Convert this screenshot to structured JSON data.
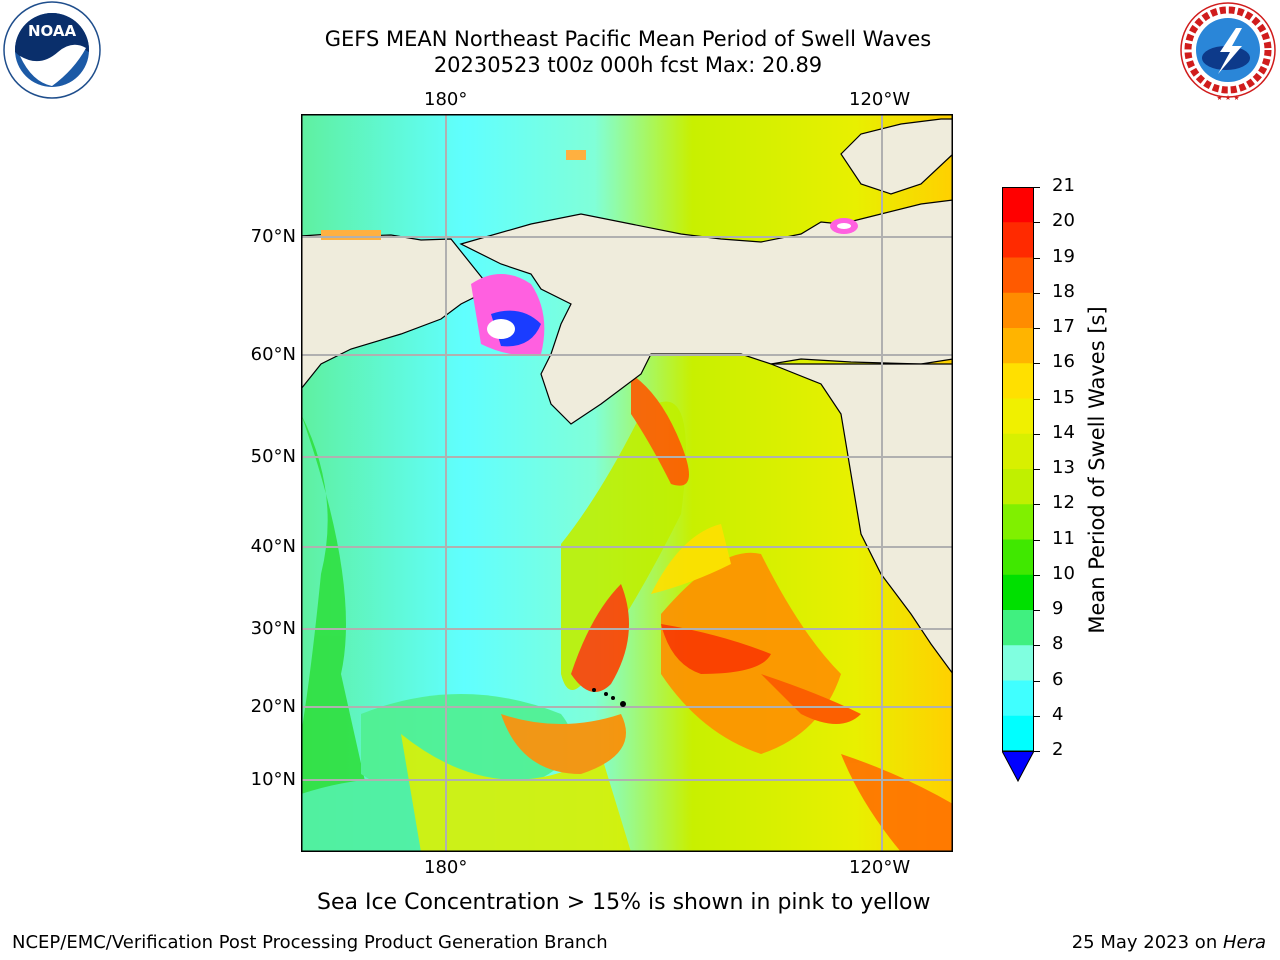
{
  "title": {
    "line1": "GEFS MEAN Northeast Pacific Mean Period of Swell Waves",
    "line2": "20230523 t00z 000h fcst   Max: 20.89"
  },
  "logos": {
    "left": {
      "name": "noaa-logo",
      "text": "NOAA"
    },
    "right": {
      "name": "nws-logo",
      "text": "NATIONAL WEATHER SERVICE"
    }
  },
  "map": {
    "lon_labels_top": [
      "180°",
      "120°W"
    ],
    "lon_labels_bottom": [
      "180°",
      "120°W"
    ],
    "lat_labels": [
      "70°N",
      "60°N",
      "50°N",
      "40°N",
      "30°N",
      "20°N",
      "10°N"
    ],
    "land_color": "#efecdc",
    "grid_color": "#b0b0b0"
  },
  "colorbar": {
    "label": "Mean Period of Swell Waves [s]",
    "ticks": [
      "21",
      "20",
      "19",
      "18",
      "17",
      "16",
      "15",
      "14",
      "13",
      "12",
      "11",
      "10",
      "9",
      "8",
      "6",
      "4",
      "2"
    ],
    "colors": [
      "#ff0000",
      "#ff2a00",
      "#ff5a00",
      "#ff8c00",
      "#ffb400",
      "#ffe000",
      "#f0f000",
      "#d8f000",
      "#c0f000",
      "#80f000",
      "#40e800",
      "#00e000",
      "#40f080",
      "#80ffe0",
      "#40ffff",
      "#00ffff",
      "#00d0ff",
      "#0070ff"
    ],
    "under_color": "#0000ff"
  },
  "caption": "Sea Ice Concentration > 15% is shown in pink to yellow",
  "footer": {
    "left": "NCEP/EMC/Verification Post Processing Product Generation Branch",
    "right_prefix": "25 May 2023 on ",
    "right_host": "Hera"
  }
}
